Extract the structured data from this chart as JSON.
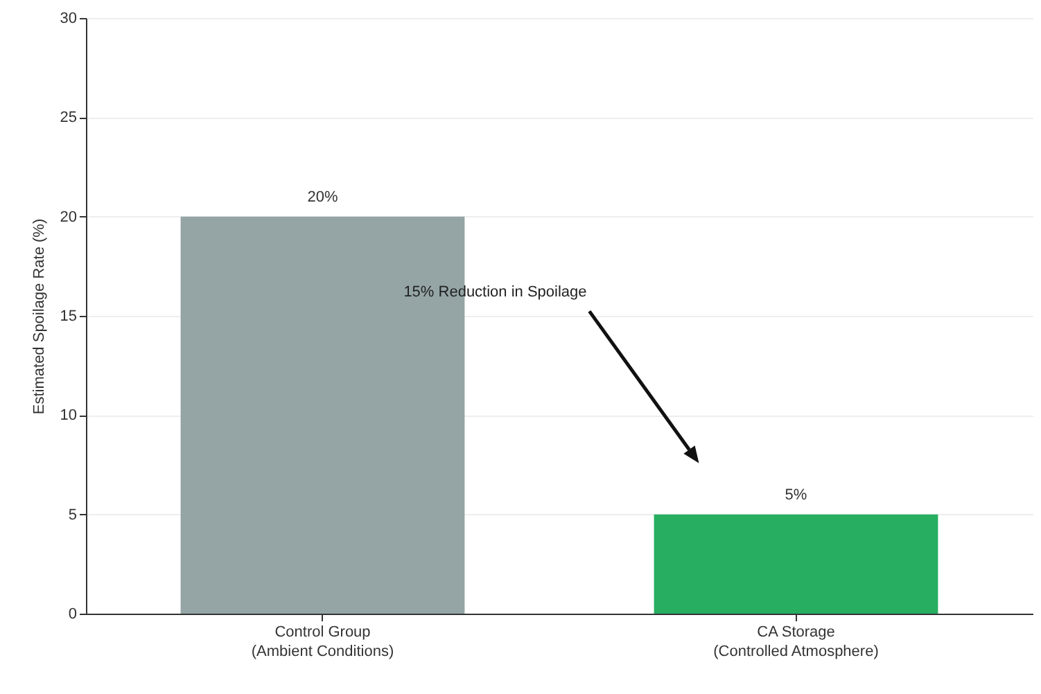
{
  "chart_data": {
    "type": "bar",
    "ylabel": "Estimated Spoilage Rate (%)",
    "categories": [
      "Control Group\n(Ambient Conditions)",
      "CA Storage\n(Controlled Atmosphere)"
    ],
    "values": [
      20,
      5
    ],
    "colors": [
      "#95a5a6",
      "#27ae60"
    ],
    "value_labels": [
      "20%",
      "5%"
    ],
    "ylim": [
      0,
      30
    ],
    "yticks": [
      0,
      5,
      10,
      15,
      20,
      25,
      30
    ],
    "grid": "y",
    "annotations": [
      "15% Reduction in Spoilage"
    ]
  }
}
